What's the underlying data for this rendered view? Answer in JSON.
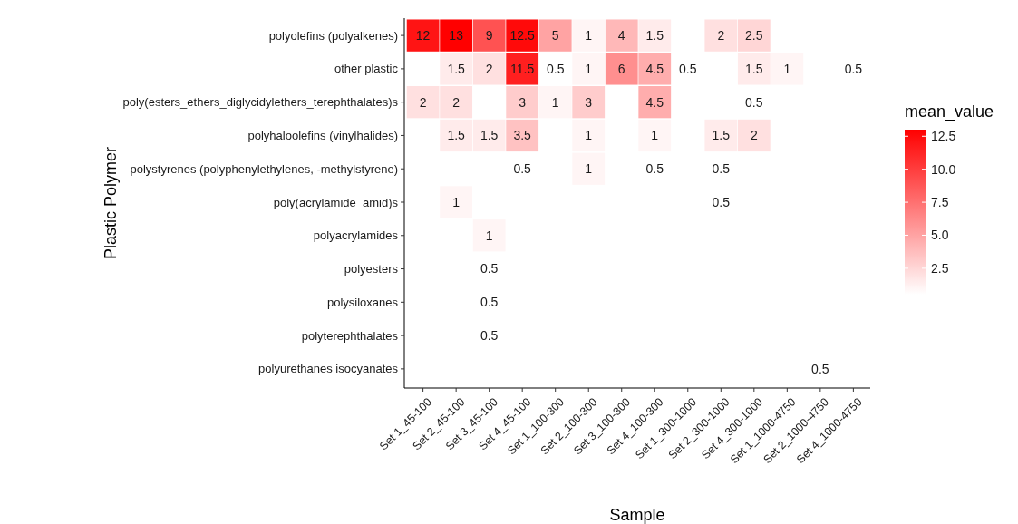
{
  "chart_data": {
    "type": "heatmap",
    "xlabel": "Sample",
    "ylabel": "Plastic Polymer",
    "legend_title": "mean_value",
    "data_labels": true,
    "categories": [
      "Set 1_45-100",
      "Set 2_45-100",
      "Set 3_45-100",
      "Set 4_45-100",
      "Set 1_100-300",
      "Set 2_100-300",
      "Set 3_100-300",
      "Set 4_100-300",
      "Set 1_300-1000",
      "Set 2_300-1000",
      "Set 4_300-1000",
      "Set 1_1000-4750",
      "Set 2_1000-4750",
      "Set 4_1000-4750"
    ],
    "y_categories": [
      "polyolefins (polyalkenes)",
      "other plastic",
      "poly(esters_ethers_diglycidylethers_terephthalates)s",
      "polyhaloolefins (vinylhalides)",
      "polystyrenes (polyphenylethylenes, -methylstyrene)",
      "poly(acrylamide_amid)s",
      "polyacrylamides",
      "polyesters",
      "polysiloxanes",
      "polyterephthalates",
      "polyurethanes isocyanates"
    ],
    "cells": [
      [
        12,
        13,
        9,
        12.5,
        5,
        1,
        4,
        1.5,
        null,
        2,
        2.5,
        null,
        null,
        null
      ],
      [
        null,
        1.5,
        2,
        11.5,
        0.5,
        1,
        6,
        4.5,
        0.5,
        null,
        1.5,
        1,
        null,
        0.5
      ],
      [
        2,
        2,
        null,
        3,
        1,
        3,
        null,
        4.5,
        null,
        null,
        0.5,
        null,
        null,
        null
      ],
      [
        null,
        1.5,
        1.5,
        3.5,
        null,
        1,
        null,
        1,
        null,
        1.5,
        2,
        null,
        null,
        null
      ],
      [
        null,
        null,
        null,
        0.5,
        null,
        1,
        null,
        0.5,
        null,
        0.5,
        null,
        null,
        null,
        null
      ],
      [
        null,
        1,
        null,
        null,
        null,
        null,
        null,
        null,
        null,
        0.5,
        null,
        null,
        null,
        null
      ],
      [
        null,
        null,
        1,
        null,
        null,
        null,
        null,
        null,
        null,
        null,
        null,
        null,
        null,
        null
      ],
      [
        null,
        null,
        0.5,
        null,
        null,
        null,
        null,
        null,
        null,
        null,
        null,
        null,
        null,
        null
      ],
      [
        null,
        null,
        0.5,
        null,
        null,
        null,
        null,
        null,
        null,
        null,
        null,
        null,
        null,
        null
      ],
      [
        null,
        null,
        0.5,
        null,
        null,
        null,
        null,
        null,
        null,
        null,
        null,
        null,
        null,
        null
      ],
      [
        null,
        null,
        null,
        null,
        null,
        null,
        null,
        null,
        null,
        null,
        null,
        null,
        0.5,
        null
      ]
    ],
    "clim": [
      0.5,
      13
    ],
    "cticks": [
      2.5,
      {
        "value": 5,
        "label": "5.0"
      },
      7.5,
      {
        "value": 10,
        "label": "10.0"
      },
      12.5
    ]
  }
}
